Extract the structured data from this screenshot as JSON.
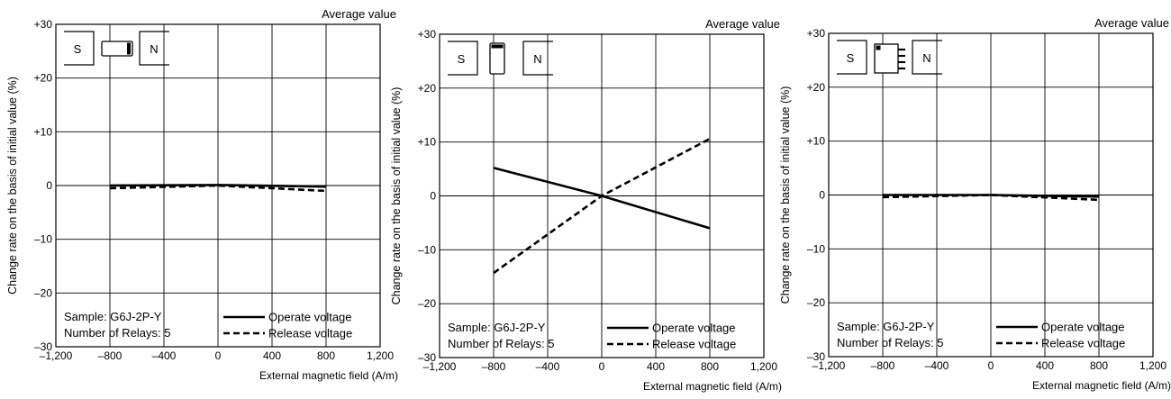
{
  "chart_data": [
    {
      "type": "line",
      "corner_label": "Average value",
      "xlabel": "External magnetic field (A/m)",
      "ylabel": "Change rate on the basis of initial value (%)",
      "xlim": [
        -1200,
        1200
      ],
      "ylim": [
        -30,
        30
      ],
      "x_ticks": [
        -1200,
        -800,
        -400,
        0,
        400,
        800,
        1200
      ],
      "x_tick_labels": [
        "–1,200",
        "–800",
        "–400",
        "0",
        "400",
        "800",
        "1,200"
      ],
      "y_ticks": [
        -30,
        -20,
        -10,
        0,
        10,
        20,
        30
      ],
      "y_tick_labels": [
        "–30",
        "–20",
        "–10",
        "0",
        "+10",
        "+20",
        "+30"
      ],
      "grid": true,
      "magnet": {
        "left_pole": "S",
        "right_pole": "N",
        "orientation": "horizontal-relay"
      },
      "sample_text": "Sample: G6J-2P-Y",
      "relays_text": "Number of Relays: 5",
      "legend_position": "bottom-right",
      "series": [
        {
          "name": "Operate voltage",
          "style": "solid",
          "x": [
            -800,
            0,
            800
          ],
          "y": [
            0,
            0.1,
            -0.2
          ]
        },
        {
          "name": "Release voltage",
          "style": "dashed",
          "x": [
            -800,
            0,
            800
          ],
          "y": [
            -0.5,
            0,
            -1.0
          ]
        }
      ]
    },
    {
      "type": "line",
      "corner_label": "Average value",
      "xlabel": "External magnetic field (A/m)",
      "ylabel": "Change rate on the basis of initial value (%)",
      "xlim": [
        -1200,
        1200
      ],
      "ylim": [
        -30,
        30
      ],
      "x_ticks": [
        -1200,
        -800,
        -400,
        0,
        400,
        800,
        1200
      ],
      "x_tick_labels": [
        "–1,200",
        "–800",
        "–400",
        "0",
        "400",
        "800",
        "1,200"
      ],
      "y_ticks": [
        -30,
        -20,
        -10,
        0,
        10,
        20,
        30
      ],
      "y_tick_labels": [
        "–30",
        "–20",
        "–10",
        "0",
        "+10",
        "+20",
        "+30"
      ],
      "grid": true,
      "magnet": {
        "left_pole": "S",
        "right_pole": "N",
        "orientation": "vertical-relay"
      },
      "sample_text": "Sample: G6J-2P-Y",
      "relays_text": "Number of Relays: 5",
      "legend_position": "bottom-right",
      "series": [
        {
          "name": "Operate voltage",
          "style": "solid",
          "x": [
            -800,
            0,
            800
          ],
          "y": [
            5.2,
            0,
            -6.0
          ]
        },
        {
          "name": "Release voltage",
          "style": "dashed",
          "x": [
            -800,
            0,
            800
          ],
          "y": [
            -14.3,
            0,
            10.6
          ]
        }
      ]
    },
    {
      "type": "line",
      "corner_label": "Average value",
      "xlabel": "External magnetic field (A/m)",
      "ylabel": "Change rate on the basis of initial value (%)",
      "xlim": [
        -1200,
        1200
      ],
      "ylim": [
        -30,
        30
      ],
      "x_ticks": [
        -1200,
        -800,
        -400,
        0,
        400,
        800,
        1200
      ],
      "x_tick_labels": [
        "–1,200",
        "–800",
        "–400",
        "0",
        "400",
        "800",
        "1,200"
      ],
      "y_ticks": [
        -30,
        -20,
        -10,
        0,
        10,
        20,
        30
      ],
      "y_tick_labels": [
        "–30",
        "–20",
        "–10",
        "0",
        "+10",
        "+20",
        "+30"
      ],
      "grid": true,
      "magnet": {
        "left_pole": "S",
        "right_pole": "N",
        "orientation": "pin-relay"
      },
      "sample_text": "Sample: G6J-2P-Y",
      "relays_text": "Number of Relays: 5",
      "legend_position": "bottom-right",
      "series": [
        {
          "name": "Operate voltage",
          "style": "solid",
          "x": [
            -800,
            0,
            800
          ],
          "y": [
            0,
            0,
            -0.3
          ]
        },
        {
          "name": "Release voltage",
          "style": "dashed",
          "x": [
            -800,
            0,
            800
          ],
          "y": [
            -0.4,
            0,
            -0.9
          ]
        }
      ]
    }
  ]
}
